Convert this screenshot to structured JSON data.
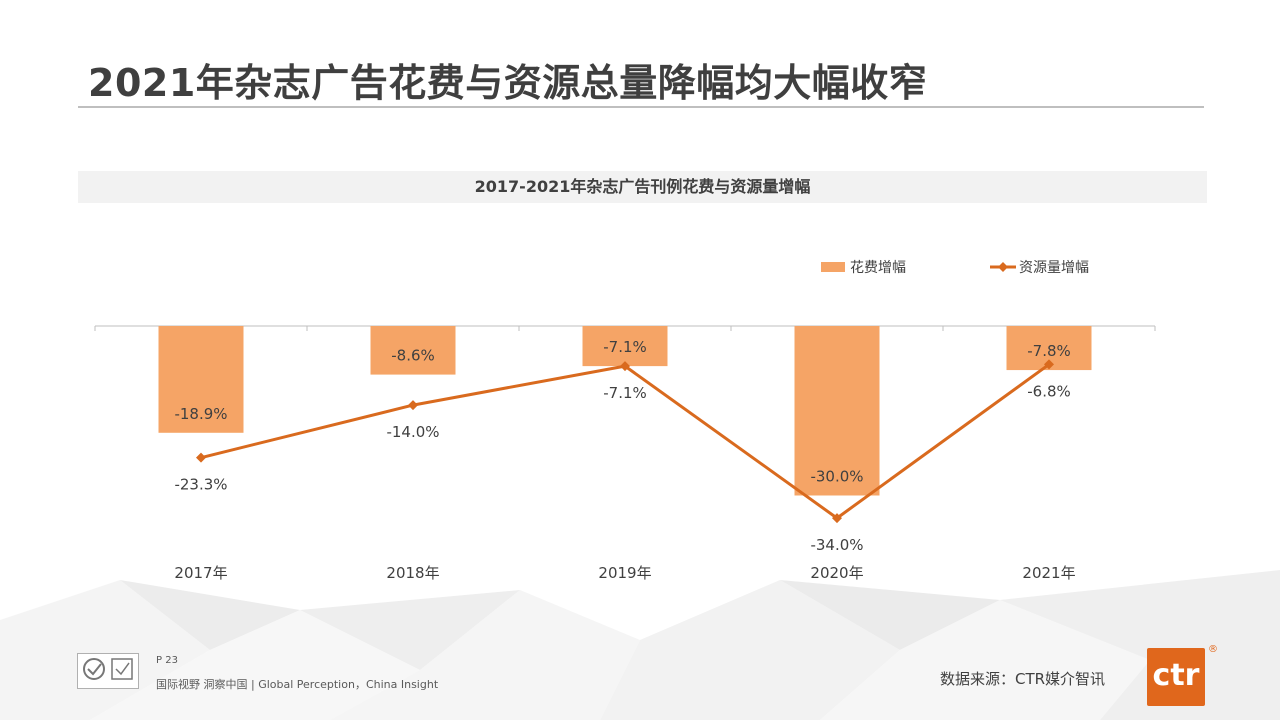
{
  "page": {
    "title": "2021年杂志广告花费与资源总量降幅均大幅收窄",
    "page_number": "P 23",
    "slogan": "国际视野 洞察中国 | Global Perception，China Insight",
    "source": "数据来源：CTR媒介智讯",
    "brand_logo_text": "ctr",
    "registered_mark": "®"
  },
  "colors": {
    "bar": "#F5A466",
    "line": "#D96A1E",
    "brand": "#E0671C"
  },
  "chart_data": {
    "type": "bar",
    "title": "2017-2021年杂志广告刊例花费与资源量增幅",
    "categories": [
      "2017年",
      "2018年",
      "2019年",
      "2020年",
      "2021年"
    ],
    "series": [
      {
        "name": "花费增幅",
        "type": "bar",
        "values": [
          -18.9,
          -8.6,
          -7.1,
          -30.0,
          -7.8
        ],
        "labels": [
          "-18.9%",
          "-8.6%",
          "-7.1%",
          "-30.0%",
          "-7.8%"
        ]
      },
      {
        "name": "资源量增幅",
        "type": "line",
        "values": [
          -23.3,
          -14.0,
          -7.1,
          -34.0,
          -6.8
        ],
        "labels": [
          "-23.3%",
          "-14.0%",
          "-7.1%",
          "-34.0%",
          "-6.8%"
        ]
      }
    ],
    "ylim": [
      -40,
      0
    ],
    "legend_position": "top-right",
    "grid": false
  }
}
